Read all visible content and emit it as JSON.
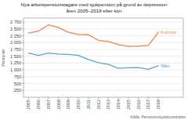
{
  "chart_data": {
    "type": "line",
    "title": "Nya arbetspensionstagare med sjukpension på grund av depression",
    "subtitle": "åren 2005–2018 efter kön",
    "y_label": "Personer",
    "annotations": [
      "Källa: Pensionsskyddscentralen"
    ],
    "x": [
      2005,
      2006,
      2007,
      2008,
      2009,
      2010,
      2011,
      2012,
      2013,
      2014,
      2015,
      2016,
      2017,
      2018
    ],
    "series": [
      {
        "name": "Kvinnor",
        "color": "#E8824A",
        "values": [
          2350,
          2420,
          2650,
          2550,
          2380,
          2300,
          2290,
          2080,
          2040,
          1930,
          1860,
          1870,
          1900,
          2380
        ]
      },
      {
        "name": "Män",
        "color": "#5BA3C9",
        "values": [
          1620,
          1530,
          1620,
          1580,
          1570,
          1530,
          1380,
          1270,
          1200,
          1060,
          1080,
          1090,
          1020,
          1150
        ]
      }
    ],
    "xlim": [
      2004.5,
      2020.5
    ],
    "xticks": [
      2005,
      2006,
      2007,
      2008,
      2009,
      2010,
      2011,
      2012,
      2013,
      2014,
      2015,
      2016,
      2017,
      2018
    ],
    "ylim": [
      0,
      2900
    ],
    "yticks": [
      250,
      500,
      750,
      {
        "value": 1000,
        "label": "1 000"
      },
      {
        "value": 1250,
        "label": "1 250"
      },
      {
        "value": 1500,
        "label": "1 500"
      },
      {
        "value": 1750,
        "label": "1 750"
      },
      {
        "value": 2000,
        "label": "2 000"
      },
      {
        "value": 2250,
        "label": "2 250"
      },
      {
        "value": 2500,
        "label": "2 500"
      },
      {
        "value": 2750,
        "label": "2 750"
      }
    ],
    "grid": true
  }
}
